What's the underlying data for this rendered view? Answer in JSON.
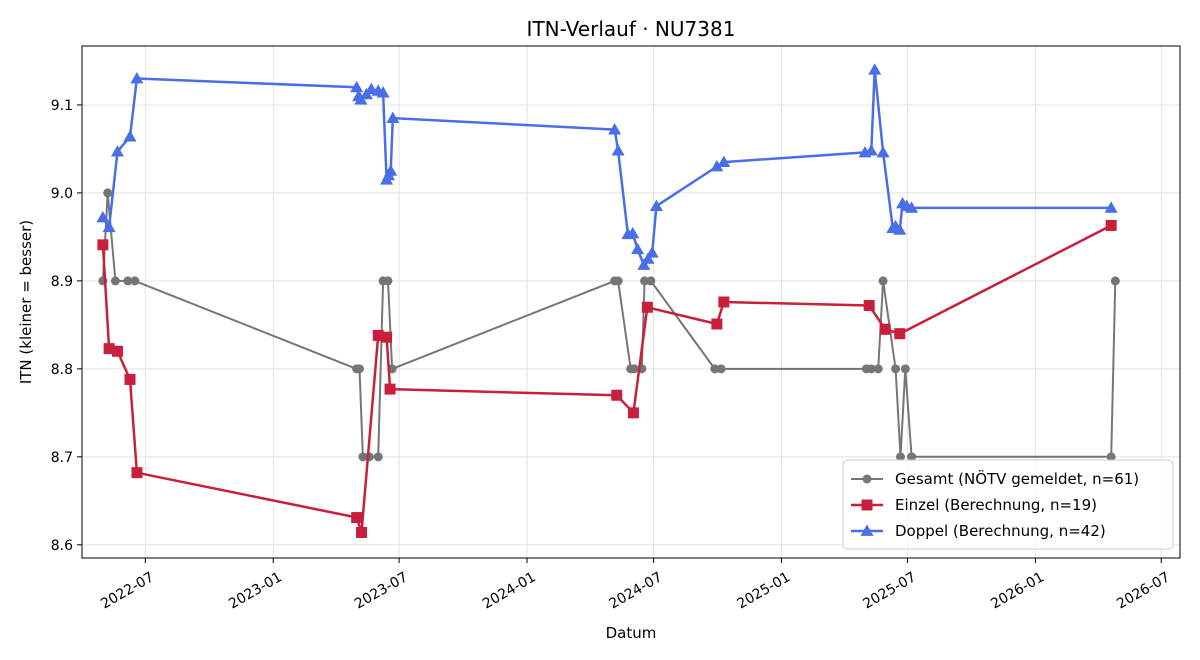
{
  "chart_data": {
    "type": "line",
    "title": "ITN-Verlauf · NU7381",
    "xlabel": "Datum",
    "ylabel": "ITN  (kleiner = besser)",
    "x_is_date": true,
    "xlim": [
      "2022-04-01",
      "2026-07-28"
    ],
    "ylim": [
      8.585,
      9.167
    ],
    "x_ticks": [
      "2022-07-01",
      "2023-01-01",
      "2023-07-01",
      "2024-01-01",
      "2024-07-01",
      "2025-01-01",
      "2025-07-01",
      "2026-01-01",
      "2026-07-01"
    ],
    "x_tick_labels": [
      "2022-07",
      "2023-01",
      "2023-07",
      "2024-01",
      "2024-07",
      "2025-01",
      "2025-07",
      "2026-01",
      "2026-07"
    ],
    "y_ticks": [
      8.6,
      8.7,
      8.8,
      8.9,
      9.0,
      9.1
    ],
    "y_tick_labels": [
      "8.6",
      "8.7",
      "8.8",
      "8.9",
      "9.0",
      "9.1"
    ],
    "grid": true,
    "legend_position": "lower-right",
    "series": [
      {
        "name": "Gesamt (NÖTV gemeldet, n=61)",
        "color": "#555555",
        "marker": "circle",
        "points": [
          [
            "2022-05-01",
            8.9
          ],
          [
            "2022-05-08",
            9.0
          ],
          [
            "2022-05-19",
            8.9
          ],
          [
            "2022-06-06",
            8.9
          ],
          [
            "2022-06-16",
            8.9
          ],
          [
            "2023-05-01",
            8.8
          ],
          [
            "2023-05-05",
            8.8
          ],
          [
            "2023-05-10",
            8.7
          ],
          [
            "2023-05-19",
            8.7
          ],
          [
            "2023-06-01",
            8.7
          ],
          [
            "2023-06-08",
            8.9
          ],
          [
            "2023-06-15",
            8.9
          ],
          [
            "2023-06-21",
            8.8
          ],
          [
            "2024-05-06",
            8.9
          ],
          [
            "2024-05-11",
            8.9
          ],
          [
            "2024-05-29",
            8.8
          ],
          [
            "2024-06-03",
            8.8
          ],
          [
            "2024-06-14",
            8.8
          ],
          [
            "2024-06-18",
            8.9
          ],
          [
            "2024-06-27",
            8.9
          ],
          [
            "2024-09-27",
            8.8
          ],
          [
            "2024-10-06",
            8.8
          ],
          [
            "2025-05-03",
            8.8
          ],
          [
            "2025-05-10",
            8.8
          ],
          [
            "2025-05-20",
            8.8
          ],
          [
            "2025-05-27",
            8.9
          ],
          [
            "2025-06-14",
            8.8
          ],
          [
            "2025-06-21",
            8.7
          ],
          [
            "2025-06-28",
            8.8
          ],
          [
            "2025-07-07",
            8.7
          ],
          [
            "2026-04-20",
            8.7
          ],
          [
            "2026-04-26",
            8.9
          ]
        ]
      },
      {
        "name": "Einzel (Berechnung, n=19)",
        "color": "#c8203c",
        "marker": "square",
        "points": [
          [
            "2022-05-01",
            8.941
          ],
          [
            "2022-05-10",
            8.823
          ],
          [
            "2022-05-22",
            8.82
          ],
          [
            "2022-06-09",
            8.788
          ],
          [
            "2022-06-19",
            8.682
          ],
          [
            "2023-05-01",
            8.631
          ],
          [
            "2023-05-08",
            8.614
          ],
          [
            "2023-06-01",
            8.838
          ],
          [
            "2023-06-13",
            8.836
          ],
          [
            "2023-06-18",
            8.777
          ],
          [
            "2024-05-09",
            8.77
          ],
          [
            "2024-06-02",
            8.75
          ],
          [
            "2024-06-22",
            8.87
          ],
          [
            "2024-09-30",
            8.851
          ],
          [
            "2024-10-10",
            8.876
          ],
          [
            "2025-05-07",
            8.872
          ],
          [
            "2025-05-30",
            8.845
          ],
          [
            "2025-06-20",
            8.84
          ],
          [
            "2026-04-20",
            8.963
          ]
        ]
      },
      {
        "name": "Doppel (Berechnung, n=42)",
        "color": "#4a6de8",
        "marker": "triangle",
        "points": [
          [
            "2022-05-01",
            8.972
          ],
          [
            "2022-05-10",
            8.961
          ],
          [
            "2022-05-22",
            9.047
          ],
          [
            "2022-06-09",
            9.064
          ],
          [
            "2022-06-19",
            9.13
          ],
          [
            "2023-05-01",
            9.12
          ],
          [
            "2023-05-04",
            9.11
          ],
          [
            "2023-05-07",
            9.106
          ],
          [
            "2023-05-15",
            9.112
          ],
          [
            "2023-05-22",
            9.118
          ],
          [
            "2023-06-01",
            9.116
          ],
          [
            "2023-06-08",
            9.114
          ],
          [
            "2023-06-13",
            9.015
          ],
          [
            "2023-06-16",
            9.02
          ],
          [
            "2023-06-19",
            9.025
          ],
          [
            "2023-06-22",
            9.085
          ],
          [
            "2024-05-06",
            9.072
          ],
          [
            "2024-05-11",
            9.048
          ],
          [
            "2024-05-25",
            8.953
          ],
          [
            "2024-06-01",
            8.954
          ],
          [
            "2024-06-08",
            8.936
          ],
          [
            "2024-06-17",
            8.918
          ],
          [
            "2024-06-23",
            8.925
          ],
          [
            "2024-06-29",
            8.932
          ],
          [
            "2024-07-05",
            8.985
          ],
          [
            "2024-09-30",
            9.03
          ],
          [
            "2024-10-10",
            9.035
          ],
          [
            "2025-05-01",
            9.046
          ],
          [
            "2025-05-10",
            9.048
          ],
          [
            "2025-05-15",
            9.14
          ],
          [
            "2025-05-27",
            9.046
          ],
          [
            "2025-06-10",
            8.96
          ],
          [
            "2025-06-14",
            8.962
          ],
          [
            "2025-06-20",
            8.958
          ],
          [
            "2025-06-24",
            8.988
          ],
          [
            "2025-06-30",
            8.985
          ],
          [
            "2025-07-07",
            8.983
          ],
          [
            "2026-04-20",
            8.983
          ]
        ]
      }
    ]
  }
}
